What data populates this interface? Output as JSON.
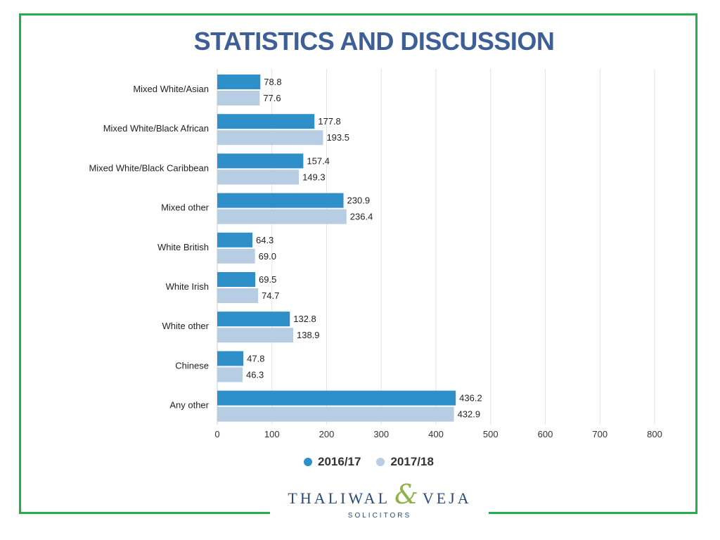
{
  "slide": {
    "title": "STATISTICS AND DISCUSSION"
  },
  "colors": {
    "series_2016": "#2e8fc9",
    "series_2017": "#b6cde3",
    "title": "#3d5f95",
    "frame": "#21b04b"
  },
  "logo": {
    "name_left": "THALIWAL",
    "ampersand": "&",
    "name_right": "VEJA",
    "subtitle": "SOLICITORS"
  },
  "chart_data": {
    "type": "bar",
    "orientation": "horizontal",
    "title": "",
    "xlabel": "",
    "ylabel": "",
    "xlim": [
      0,
      800
    ],
    "x_ticks": [
      0,
      100,
      200,
      300,
      400,
      500,
      600,
      700,
      800
    ],
    "grid": true,
    "legend_position": "bottom",
    "categories": [
      "Mixed White/Asian",
      "Mixed White/Black African",
      "Mixed White/Black Caribbean",
      "Mixed other",
      "White British",
      "White Irish",
      "White other",
      "Chinese",
      "Any other"
    ],
    "series": [
      {
        "name": "2016/17",
        "values": [
          78.8,
          177.8,
          157.4,
          230.9,
          64.3,
          69.5,
          132.8,
          47.8,
          436.2
        ],
        "labels": [
          "78.8",
          "177.8",
          "157.4",
          "230.9",
          "64.3",
          "69.5",
          "132.8",
          "47.8",
          "436.2"
        ]
      },
      {
        "name": "2017/18",
        "values": [
          77.6,
          193.5,
          149.3,
          236.4,
          69.0,
          74.7,
          138.9,
          46.3,
          432.9
        ],
        "labels": [
          "77.6",
          "193.5",
          "149.3",
          "236.4",
          "69.0",
          "74.7",
          "138.9",
          "46.3",
          "432.9"
        ]
      }
    ]
  }
}
